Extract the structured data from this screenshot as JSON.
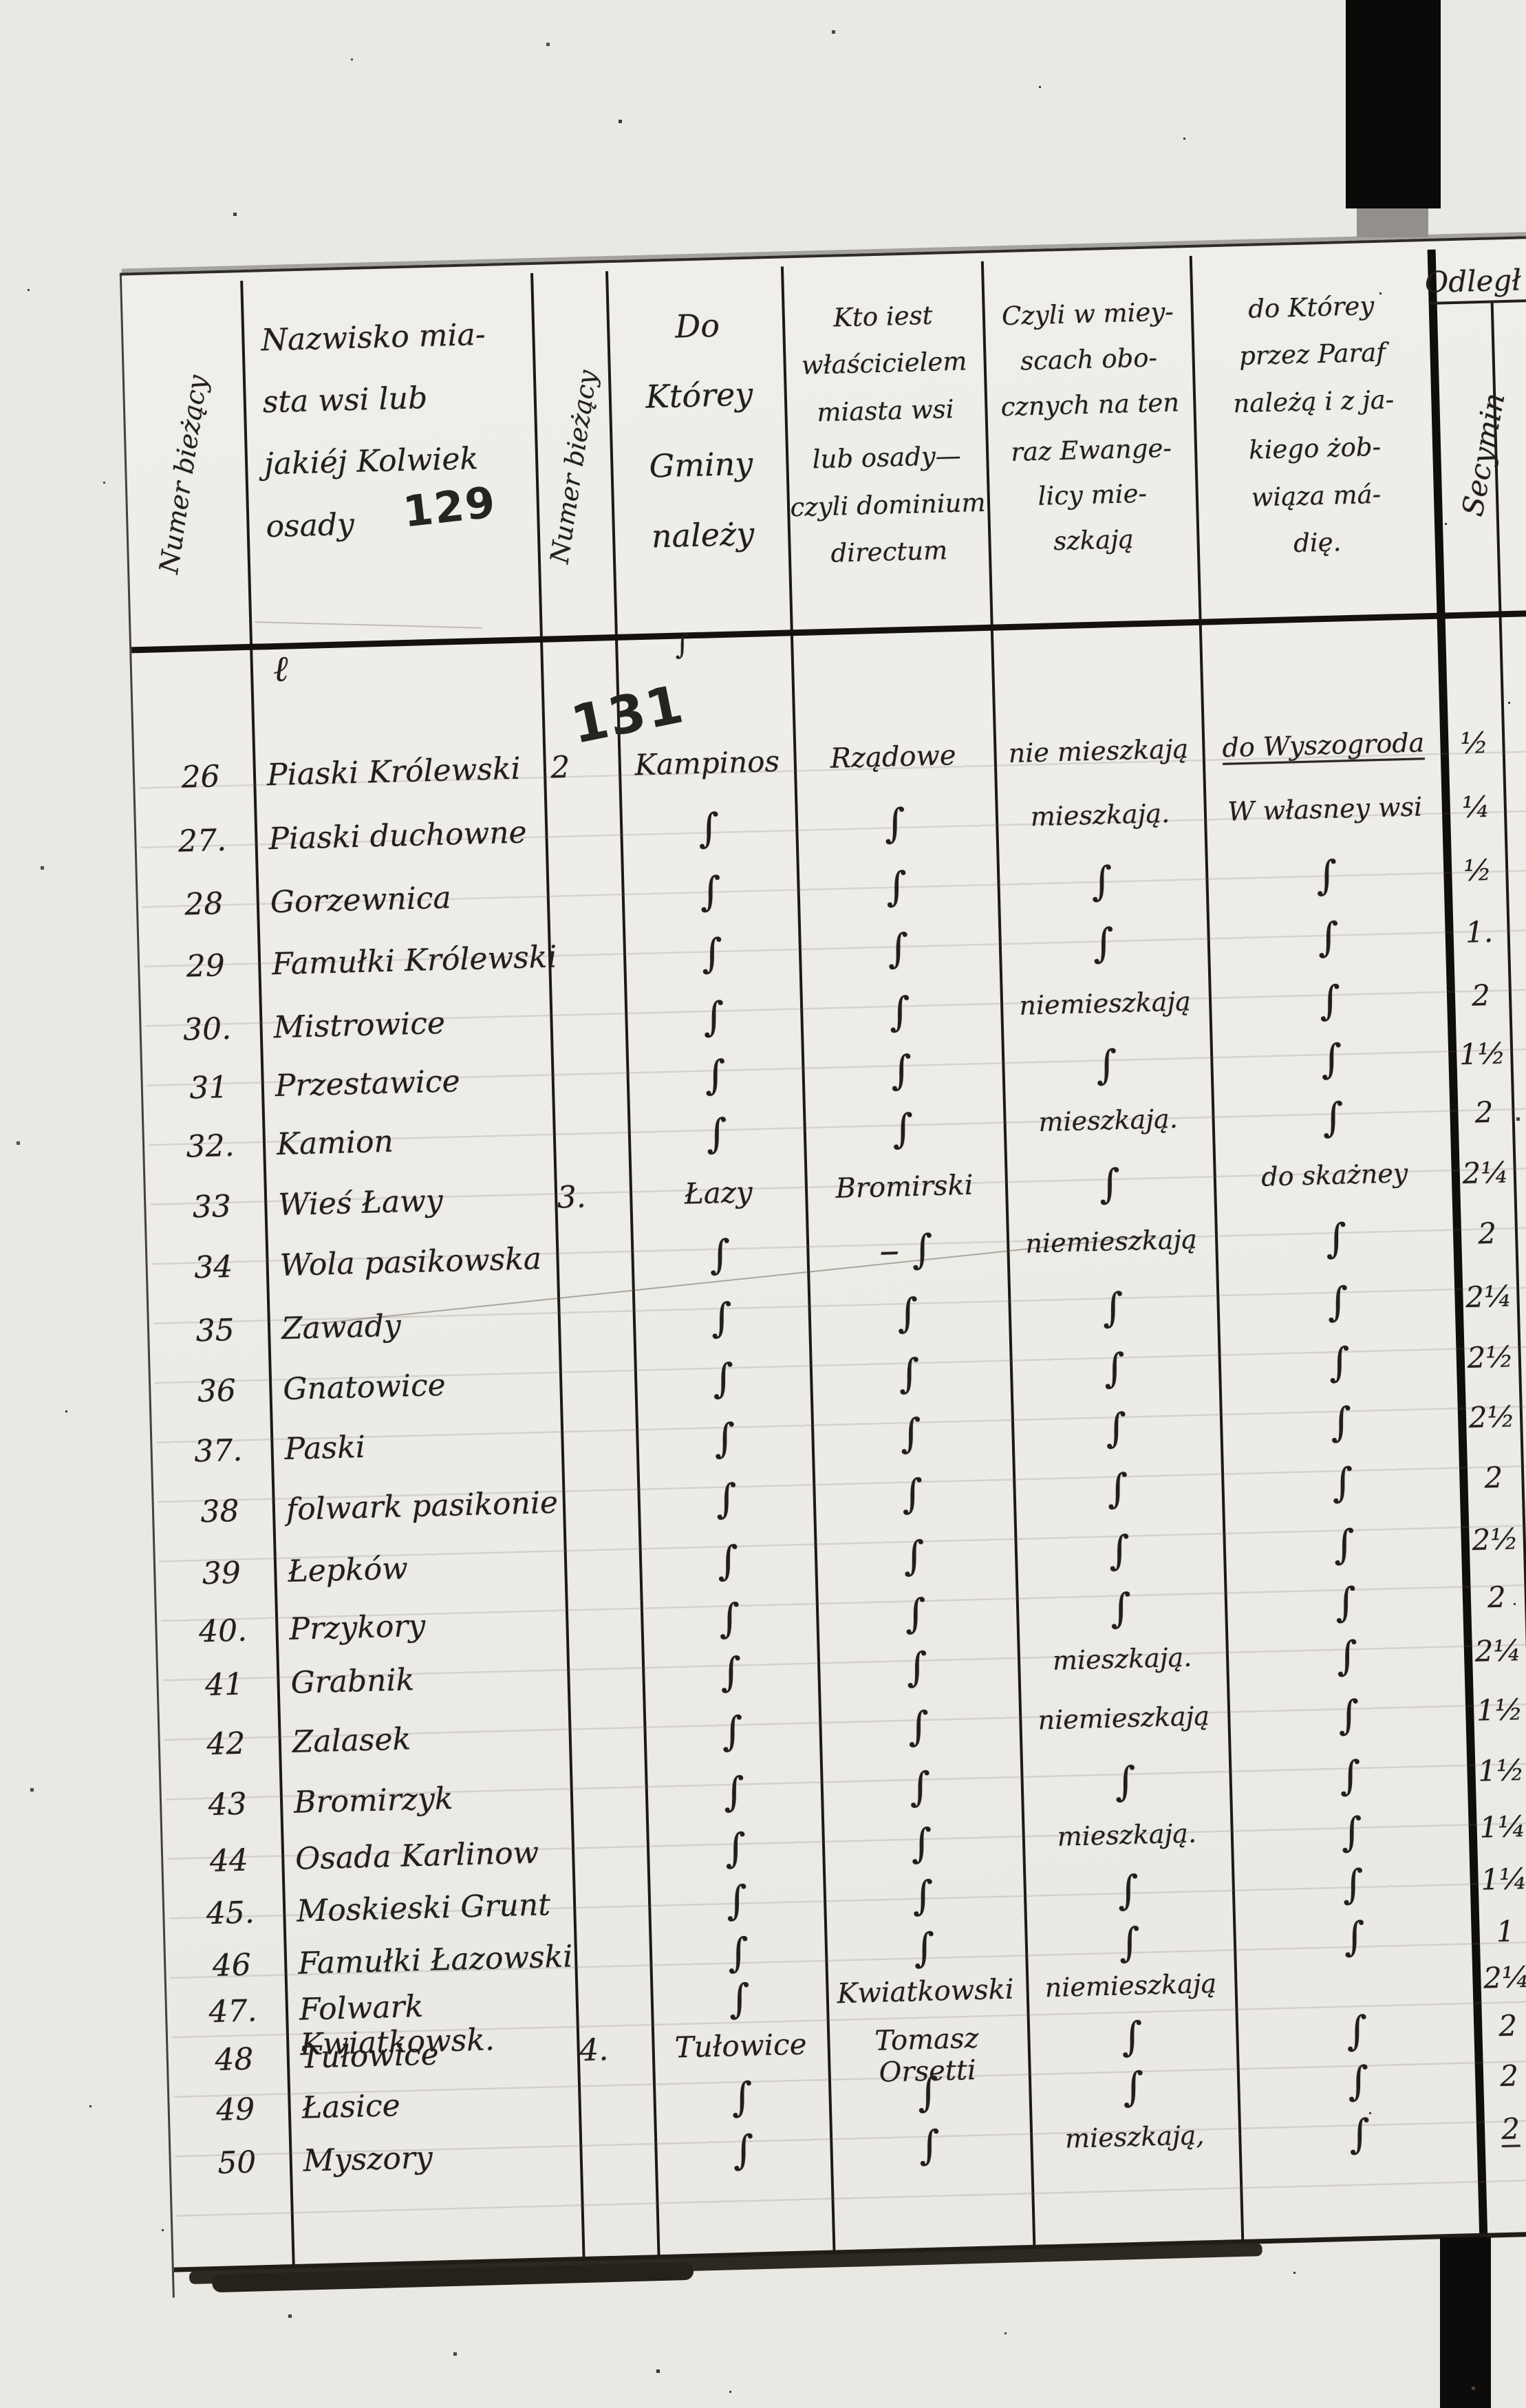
{
  "document": {
    "kind_note": "handwritten registry table page",
    "pencil_numbers": {
      "page_129": "129",
      "page_131": "131"
    },
    "header": {
      "col1_vertical": "Numer bieżący",
      "col2_title": "Nazwisko mia-\nsta wsi lub\njakiéj Kolwiek\nosady",
      "col3_vertical": "Numer bieżący",
      "col4_title": "Do\nKtórey\nGminy\nnależy",
      "col5_title": "Kto iest\nwłaścicielem\nmiasta wsi\nlub osady—\nczyli dominium\ndirectum",
      "col6_title": "Czyli w miey-\nscach obo-\ncznych na ten\nraz Ewange-\nlicy mie-\nszkają",
      "col7_title": "do Którey\nprzez Paraf\nnależą i z ja-\nkiego żob-\nwiąza má-\ndię.",
      "col8_title": "Odległ",
      "col8_vertical": "Secymin"
    },
    "ditto_glyph": "∫",
    "stray_marks": {
      "mark1": "ℓ",
      "mark2": "∫"
    },
    "rows": [
      {
        "no": "26",
        "name": "Piaski Królewski",
        "gmina_no": "2",
        "gmina": "Kampinos",
        "owner": "Rządowe",
        "evangelicals": "nie mieszkają",
        "parish": "do Wyszogroda",
        "distance": "½",
        "u": "parish"
      },
      {
        "no": "27.",
        "name": "Piaski duchowne",
        "gmina": "∫",
        "owner": "∫",
        "evangelicals": "mieszkają.",
        "parish": "W własney wsi",
        "distance": "¼"
      },
      {
        "no": "28",
        "name": "Gorzewnica",
        "gmina": "∫",
        "owner": "∫",
        "evangelicals": "∫",
        "parish": "∫",
        "distance": "½"
      },
      {
        "no": "29",
        "name": "Famułki Królewski",
        "gmina": "∫",
        "owner": "∫",
        "evangelicals": "∫",
        "parish": "∫",
        "distance": "1."
      },
      {
        "no": "30.",
        "name": "Mistrowice",
        "gmina": "∫",
        "owner": "∫",
        "evangelicals": "niemieszkają",
        "parish": "∫",
        "distance": "2"
      },
      {
        "no": "31",
        "name": "Przestawice",
        "gmina": "∫",
        "owner": "∫",
        "evangelicals": "∫",
        "parish": "∫",
        "distance": "1½"
      },
      {
        "no": "32.",
        "name": "Kamion",
        "gmina": "∫",
        "owner": "∫",
        "evangelicals": "mieszkają.",
        "parish": "∫",
        "distance": "2"
      },
      {
        "no": "33",
        "name": "Wieś Ławy",
        "gmina_no": "3.",
        "gmina": "Łazy",
        "owner": "Bromirski",
        "evangelicals": "∫",
        "parish": "do skażney",
        "distance": "2¼"
      },
      {
        "no": "34",
        "name": "Wola pasikowska",
        "gmina": "∫",
        "owner": "– ∫",
        "evangelicals": "niemieszkają",
        "parish": "∫",
        "distance": "2"
      },
      {
        "no": "35",
        "name": "Zawady",
        "gmina": "∫",
        "owner": "∫",
        "evangelicals": "∫",
        "parish": "∫",
        "distance": "2¼"
      },
      {
        "no": "36",
        "name": "Gnatowice",
        "gmina": "∫",
        "owner": "∫",
        "evangelicals": "∫",
        "parish": "∫",
        "distance": "2½"
      },
      {
        "no": "37.",
        "name": "Paski",
        "gmina": "∫",
        "owner": "∫",
        "evangelicals": "∫",
        "parish": "∫",
        "distance": "2½"
      },
      {
        "no": "38",
        "name": "folwark pasikonie",
        "gmina": "∫",
        "owner": "∫",
        "evangelicals": "∫",
        "parish": "∫",
        "distance": "2"
      },
      {
        "no": "39",
        "name": "Łepków",
        "gmina": "∫",
        "owner": "∫",
        "evangelicals": "∫",
        "parish": "∫",
        "distance": "2½"
      },
      {
        "no": "40.",
        "name": "Przykory",
        "gmina": "∫",
        "owner": "∫",
        "evangelicals": "∫",
        "parish": "∫",
        "distance": "2"
      },
      {
        "no": "41",
        "name": "Grabnik",
        "gmina": "∫",
        "owner": "∫",
        "evangelicals": "mieszkają.",
        "parish": "∫",
        "distance": "2¼"
      },
      {
        "no": "42",
        "name": "Zalasek",
        "gmina": "∫",
        "owner": "∫",
        "evangelicals": "niemieszkają",
        "parish": "∫",
        "distance": "1½"
      },
      {
        "no": "43",
        "name": "Bromirzyk",
        "gmina": "∫",
        "owner": "∫",
        "evangelicals": "∫",
        "parish": "∫",
        "distance": "1½"
      },
      {
        "no": "44",
        "name": "Osada Karlinow",
        "gmina": "∫",
        "owner": "∫",
        "evangelicals": "mieszkają.",
        "parish": "∫",
        "distance": "1¼"
      },
      {
        "no": "45.",
        "name": "Moskieski Grunt",
        "gmina": "∫",
        "owner": "∫",
        "evangelicals": "∫",
        "parish": "∫",
        "distance": "1¼"
      },
      {
        "no": "46",
        "name": "Famułki Łazowski",
        "gmina": "∫",
        "owner": "∫",
        "evangelicals": "∫",
        "parish": "∫",
        "distance": "1"
      },
      {
        "no": "47.",
        "name": "Folwark Kwiatkowsk.",
        "gmina": "∫",
        "owner": "Kwiatkowski",
        "evangelicals": "niemieszkają",
        "parish": "",
        "distance": "2¼"
      },
      {
        "no": "48",
        "name": "Tułowice",
        "gmina_no": "4.",
        "gmina": "Tułowice",
        "owner": "Tomasz Orsetti",
        "evangelicals": "∫",
        "parish": "∫",
        "distance": "2"
      },
      {
        "no": "49",
        "name": "Łasice",
        "gmina": "∫",
        "owner": "∫",
        "evangelicals": "∫",
        "parish": "∫",
        "distance": "2"
      },
      {
        "no": "50",
        "name": "Myszory",
        "gmina": "∫",
        "owner": "∫",
        "evangelicals": "mieszkają,",
        "parish": "∫",
        "distance": "2",
        "u": "distance"
      }
    ]
  }
}
